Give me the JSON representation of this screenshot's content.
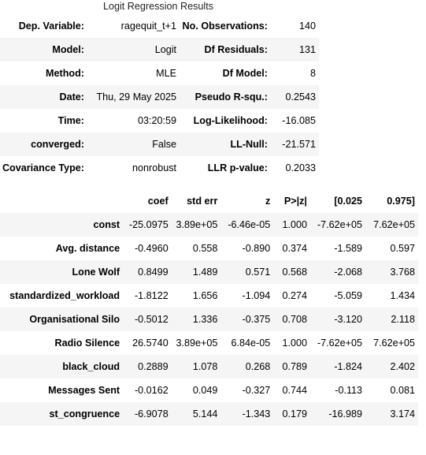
{
  "caption": "Logit Regression Results",
  "summary": [
    {
      "l1": "Dep. Variable:",
      "v1": "ragequit_t+1",
      "l2": "No. Observations:",
      "v2": "140"
    },
    {
      "l1": "Model:",
      "v1": "Logit",
      "l2": "Df Residuals:",
      "v2": "131"
    },
    {
      "l1": "Method:",
      "v1": "MLE",
      "l2": "Df Model:",
      "v2": "8"
    },
    {
      "l1": "Date:",
      "v1": "Thu, 29 May 2025",
      "l2": "Pseudo R-squ.:",
      "v2": "0.2543"
    },
    {
      "l1": "Time:",
      "v1": "03:20:59",
      "l2": "Log-Likelihood:",
      "v2": "-16.085"
    },
    {
      "l1": "converged:",
      "v1": "False",
      "l2": "LL-Null:",
      "v2": "-21.571"
    },
    {
      "l1": "Covariance Type:",
      "v1": "nonrobust",
      "l2": "LLR p-value:",
      "v2": "0.2033"
    }
  ],
  "coef_header": [
    "",
    "coef",
    "std err",
    "z",
    "P>|z|",
    "[0.025",
    "0.975]"
  ],
  "coef_rows": [
    [
      "const",
      "-25.0975",
      "3.89e+05",
      "-6.46e-05",
      "1.000",
      "-7.62e+05",
      "7.62e+05"
    ],
    [
      "Avg. distance",
      "-0.4960",
      "0.558",
      "-0.890",
      "0.374",
      "-1.589",
      "0.597"
    ],
    [
      "Lone Wolf",
      "0.8499",
      "1.489",
      "0.571",
      "0.568",
      "-2.068",
      "3.768"
    ],
    [
      "standardized_workload",
      "-1.8122",
      "1.656",
      "-1.094",
      "0.274",
      "-5.059",
      "1.434"
    ],
    [
      "Organisational Silo",
      "-0.5012",
      "1.336",
      "-0.375",
      "0.708",
      "-3.120",
      "2.118"
    ],
    [
      "Radio Silence",
      "26.5740",
      "3.89e+05",
      "6.84e-05",
      "1.000",
      "-7.62e+05",
      "7.62e+05"
    ],
    [
      "black_cloud",
      "0.2889",
      "1.078",
      "0.268",
      "0.789",
      "-1.824",
      "2.402"
    ],
    [
      "Messages Sent",
      "-0.0162",
      "0.049",
      "-0.327",
      "0.744",
      "-0.113",
      "0.081"
    ],
    [
      "st_congruence",
      "-6.9078",
      "5.144",
      "-1.343",
      "0.179",
      "-16.989",
      "3.174"
    ]
  ]
}
